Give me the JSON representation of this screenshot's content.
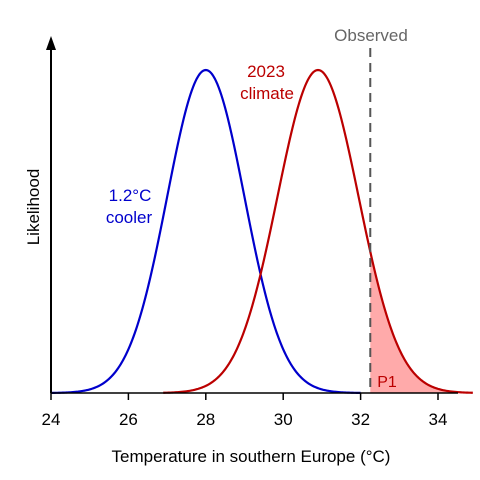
{
  "chart_data": {
    "type": "line",
    "title": "",
    "xlabel": "Temperature in southern Europe (°C)",
    "ylabel": "Likelihood",
    "xlim": [
      24,
      34.5
    ],
    "ylim": [
      0,
      1.12
    ],
    "x_ticks": [
      24,
      26,
      28,
      30,
      32,
      34
    ],
    "x_tick_labels": [
      "24",
      "26",
      "28",
      "30",
      "32",
      "34"
    ],
    "y_ticks": [],
    "grid": false,
    "legend": "none",
    "series": [
      {
        "name": "1.2°C cooler",
        "color": "#0000cc",
        "distribution": "normal",
        "mean": 28.0,
        "sd": 1.0,
        "peak": 1.0,
        "x_range": [
          24.0,
          32.0
        ],
        "x": [
          24.0,
          25.0,
          26.0,
          27.0,
          27.5,
          28.0,
          28.5,
          29.0,
          30.0,
          31.0,
          32.0
        ],
        "y": [
          0.0,
          0.01,
          0.14,
          0.61,
          0.88,
          1.0,
          0.88,
          0.61,
          0.14,
          0.01,
          0.0
        ]
      },
      {
        "name": "2023 climate",
        "color": "#bb0000",
        "distribution": "normal",
        "mean": 30.9,
        "sd": 1.05,
        "peak": 1.0,
        "x_range": [
          26.9,
          34.9
        ],
        "x": [
          26.9,
          28.0,
          29.0,
          30.0,
          30.5,
          30.9,
          31.5,
          32.0,
          33.0,
          34.0,
          34.9
        ],
        "y": [
          0.0,
          0.02,
          0.19,
          0.69,
          0.93,
          1.0,
          0.85,
          0.58,
          0.14,
          0.01,
          0.0
        ]
      }
    ],
    "observed": {
      "label": "Observed",
      "x": 32.25,
      "color": "#555555"
    },
    "shaded_region": {
      "label": "P1",
      "series": "2023 climate",
      "x_from": 32.25,
      "fill": "#ffaaaa",
      "label_color": "#bb0000"
    },
    "annotations": [
      {
        "series": "1.2°C cooler",
        "lines": [
          "1.2°C",
          "cooler"
        ],
        "color": "#0000cc"
      },
      {
        "series": "2023 climate",
        "lines": [
          "2023",
          "climate"
        ],
        "color": "#bb0000"
      }
    ]
  }
}
